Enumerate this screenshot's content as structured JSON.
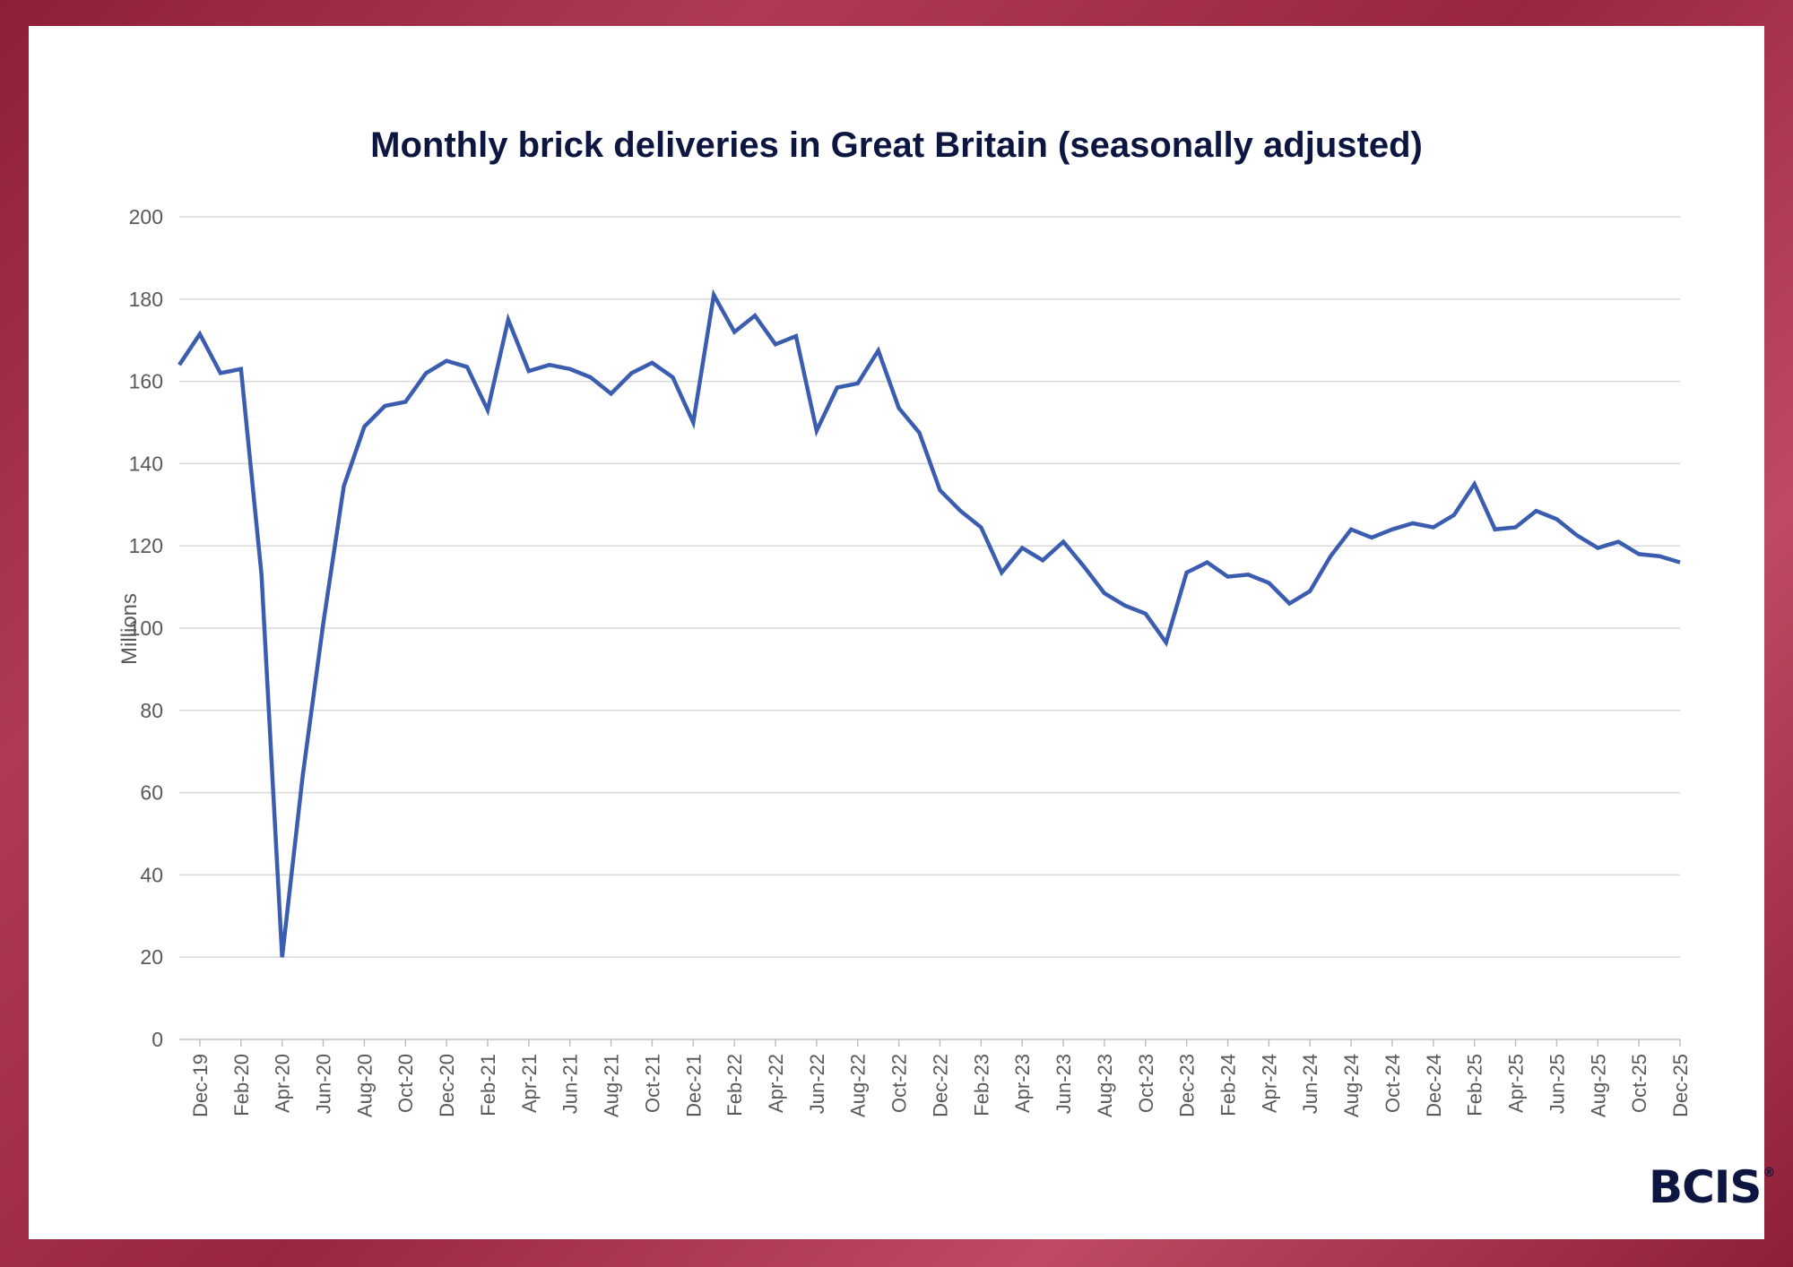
{
  "colors": {
    "line": "#3a5daf",
    "title": "#0c1640",
    "grid": "#d9d9d9",
    "text": "#595959"
  },
  "logo": {
    "text": "BCIS",
    "mark": "®"
  },
  "chart_data": {
    "type": "line",
    "title": "Monthly brick deliveries in Great Britain (seasonally adjusted)",
    "xlabel": "",
    "ylabel": "Millions",
    "ylim": [
      0,
      200
    ],
    "yticks": [
      0,
      20,
      40,
      60,
      80,
      100,
      120,
      140,
      160,
      180,
      200
    ],
    "grid": true,
    "legend": "none",
    "x": [
      "Nov-19",
      "Dec-19",
      "Jan-20",
      "Feb-20",
      "Mar-20",
      "Apr-20",
      "May-20",
      "Jun-20",
      "Jul-20",
      "Aug-20",
      "Sep-20",
      "Oct-20",
      "Nov-20",
      "Dec-20",
      "Jan-21",
      "Feb-21",
      "Mar-21",
      "Apr-21",
      "May-21",
      "Jun-21",
      "Jul-21",
      "Aug-21",
      "Sep-21",
      "Oct-21",
      "Nov-21",
      "Dec-21",
      "Jan-22",
      "Feb-22",
      "Mar-22",
      "Apr-22",
      "May-22",
      "Jun-22",
      "Jul-22",
      "Aug-22",
      "Sep-22",
      "Oct-22",
      "Nov-22",
      "Dec-22",
      "Jan-23",
      "Feb-23",
      "Mar-23",
      "Apr-23",
      "May-23",
      "Jun-23",
      "Jul-23",
      "Aug-23",
      "Sep-23",
      "Oct-23",
      "Nov-23",
      "Dec-23",
      "Jan-24",
      "Feb-24",
      "Mar-24",
      "Apr-24",
      "May-24",
      "Jun-24",
      "Jul-24",
      "Aug-24",
      "Sep-24",
      "Oct-24",
      "Nov-24",
      "Dec-24",
      "Jan-25",
      "Feb-25",
      "Mar-25",
      "Apr-25",
      "May-25",
      "Jun-25",
      "Jul-25",
      "Aug-25",
      "Sep-25",
      "Oct-25",
      "Nov-25",
      "Dec-25"
    ],
    "xtick_labels": [
      "Dec-19",
      "Feb-20",
      "Apr-20",
      "Jun-20",
      "Aug-20",
      "Oct-20",
      "Dec-20",
      "Feb-21",
      "Apr-21",
      "Jun-21",
      "Aug-21",
      "Oct-21",
      "Dec-21",
      "Feb-22",
      "Apr-22",
      "Jun-22",
      "Aug-22",
      "Oct-22",
      "Dec-22",
      "Feb-23",
      "Apr-23",
      "Jun-23",
      "Aug-23",
      "Oct-23",
      "Dec-23",
      "Feb-24",
      "Apr-24",
      "Jun-24",
      "Aug-24",
      "Oct-24",
      "Dec-24",
      "Feb-25",
      "Apr-25",
      "Jun-25",
      "Aug-25",
      "Oct-25",
      "Dec-25"
    ],
    "series": [
      {
        "values": [
          164,
          171.5,
          162,
          163,
          113,
          20,
          64,
          101,
          134.5,
          149,
          154,
          155,
          162,
          165,
          163.5,
          153,
          175,
          162.5,
          164,
          163,
          161,
          157,
          162,
          164.5,
          161,
          150,
          181,
          172,
          176,
          169,
          171,
          148,
          158.5,
          159.5,
          167.5,
          153.5,
          147.5,
          133.5,
          128.5,
          124.5,
          113.5,
          119.5,
          116.5,
          121,
          115,
          108.5,
          105.5,
          103.5,
          96.5,
          113.5,
          116,
          112.5,
          113,
          111,
          106,
          109,
          117.5,
          124,
          122,
          124,
          125.5,
          124.5,
          127.5,
          135,
          124,
          124.5,
          128.5,
          126.5,
          122.5,
          119.5,
          121,
          118,
          117.5,
          116
        ]
      }
    ]
  }
}
